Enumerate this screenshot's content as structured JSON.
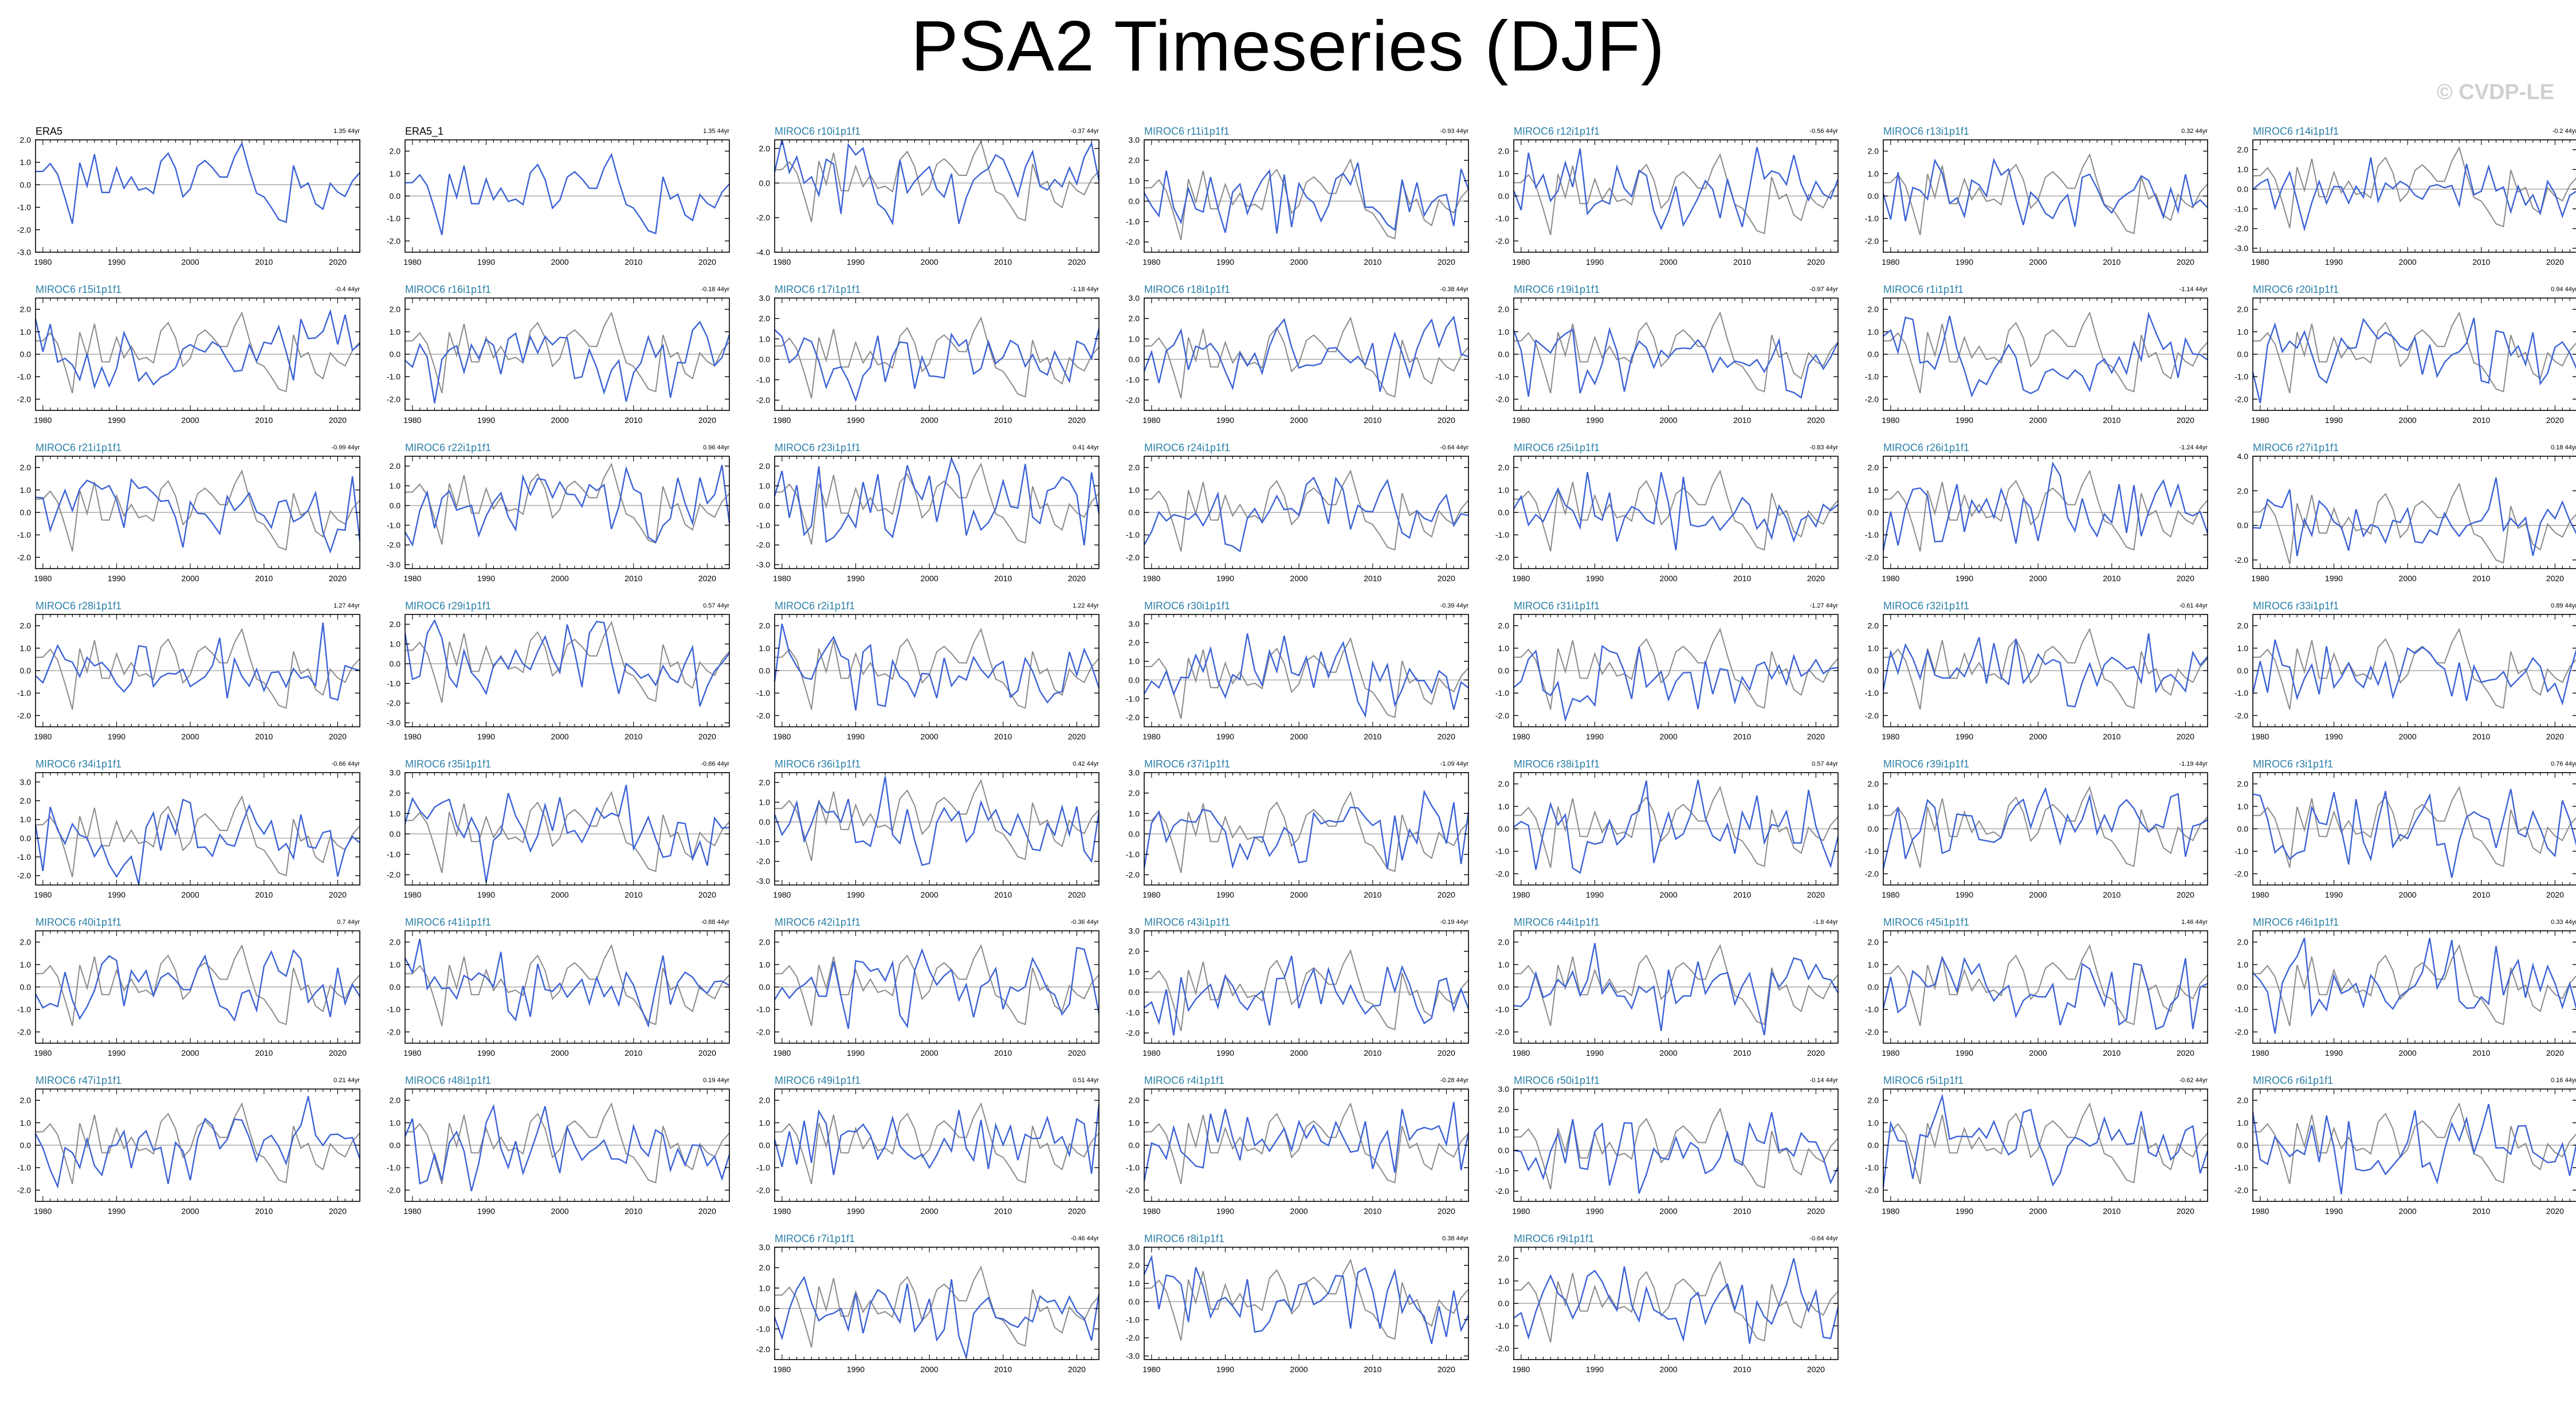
{
  "page": {
    "title": "PSA2 Timeseries (DJF)",
    "watermark": "© CVDP-LE"
  },
  "axis": {
    "x_ticks": [
      1980,
      1990,
      2000,
      2010,
      2020
    ],
    "xlim": [
      1979,
      2023
    ]
  },
  "colors": {
    "model_line": "#3b62d6",
    "obs_line": "#8a8a8a",
    "zero_line": "#999999",
    "model_title": "#2a7fa8"
  },
  "chart_data": [
    {
      "type": "line",
      "title": "ERA5",
      "trend": "1.35 44yr",
      "obs": true,
      "ylim": [
        -3,
        2
      ],
      "ticks": [
        -3,
        -2,
        -1,
        0,
        1,
        2
      ],
      "seed": 1
    },
    {
      "type": "line",
      "title": "ERA5_1",
      "trend": "1.35 44yr",
      "obs": true,
      "ylim": [
        -2.5,
        2.5
      ],
      "ticks": [
        -2,
        -1,
        0,
        1,
        2
      ],
      "seed": 1
    },
    {
      "type": "line",
      "title": "MIROC6 r10i1p1f1",
      "trend": "-0.37 44yr",
      "ylim": [
        -4,
        2.5
      ],
      "ticks": [
        -4,
        -2,
        0,
        2
      ],
      "seed": 10
    },
    {
      "type": "line",
      "title": "MIROC6 r11i1p1f1",
      "trend": "-0.93 44yr",
      "ylim": [
        -2.5,
        3
      ],
      "ticks": [
        -2,
        -1,
        0,
        1,
        2,
        3
      ],
      "seed": 11
    },
    {
      "type": "line",
      "title": "MIROC6 r12i1p1f1",
      "trend": "-0.56 44yr",
      "ylim": [
        -2.5,
        2.5
      ],
      "ticks": [
        -2,
        -1,
        0,
        1,
        2
      ],
      "seed": 12
    },
    {
      "type": "line",
      "title": "MIROC6 r13i1p1f1",
      "trend": "0.32 44yr",
      "ylim": [
        -2.5,
        2.5
      ],
      "ticks": [
        -2,
        -1,
        0,
        1,
        2
      ],
      "seed": 13
    },
    {
      "type": "line",
      "title": "MIROC6 r14i1p1f1",
      "trend": "-0.2 44yr",
      "ylim": [
        -3.2,
        2.5
      ],
      "ticks": [
        -3,
        -2,
        -1,
        0,
        1,
        2
      ],
      "seed": 14
    },
    {
      "type": "line",
      "title": "MIROC6 r15i1p1f1",
      "trend": "-0.4 44yr",
      "ylim": [
        -2.5,
        2.5
      ],
      "ticks": [
        -2,
        -1,
        0,
        1,
        2
      ],
      "seed": 15
    },
    {
      "type": "line",
      "title": "MIROC6 r16i1p1f1",
      "trend": "-0.18 44yr",
      "ylim": [
        -2.5,
        2.5
      ],
      "ticks": [
        -2,
        -1,
        0,
        1,
        2
      ],
      "seed": 16
    },
    {
      "type": "line",
      "title": "MIROC6 r17i1p1f1",
      "trend": "-1.18 44yr",
      "ylim": [
        -2.5,
        3
      ],
      "ticks": [
        -2,
        -1,
        0,
        1,
        2,
        3
      ],
      "seed": 17
    },
    {
      "type": "line",
      "title": "MIROC6 r18i1p1f1",
      "trend": "-0.38 44yr",
      "ylim": [
        -2.5,
        3
      ],
      "ticks": [
        -2,
        -1,
        0,
        1,
        2,
        3
      ],
      "seed": 18
    },
    {
      "type": "line",
      "title": "MIROC6 r19i1p1f1",
      "trend": "-0.97 44yr",
      "ylim": [
        -2.5,
        2.5
      ],
      "ticks": [
        -2,
        -1,
        0,
        1,
        2
      ],
      "seed": 19
    },
    {
      "type": "line",
      "title": "MIROC6 r1i1p1f1",
      "trend": "-1.14 44yr",
      "ylim": [
        -2.5,
        2.5
      ],
      "ticks": [
        -2,
        -1,
        0,
        1,
        2
      ],
      "seed": 21
    },
    {
      "type": "line",
      "title": "MIROC6 r20i1p1f1",
      "trend": "0.94 44yr",
      "ylim": [
        -2.5,
        2.5
      ],
      "ticks": [
        -2,
        -1,
        0,
        1,
        2
      ],
      "seed": 20
    },
    {
      "type": "line",
      "title": "MIROC6 r21i1p1f1",
      "trend": "-0.99 44yr",
      "ylim": [
        -2.5,
        2.5
      ],
      "ticks": [
        -2,
        -1,
        0,
        1,
        2
      ],
      "seed": 22
    },
    {
      "type": "line",
      "title": "MIROC6 r22i1p1f1",
      "trend": "0.96 44yr",
      "ylim": [
        -3.2,
        2.5
      ],
      "ticks": [
        -3,
        -2,
        -1,
        0,
        1,
        2
      ],
      "seed": 23
    },
    {
      "type": "line",
      "title": "MIROC6 r23i1p1f1",
      "trend": "0.41 44yr",
      "ylim": [
        -3.2,
        2.5
      ],
      "ticks": [
        -3,
        -2,
        -1,
        0,
        1,
        2
      ],
      "seed": 24
    },
    {
      "type": "line",
      "title": "MIROC6 r24i1p1f1",
      "trend": "-0.64 44yr",
      "ylim": [
        -2.5,
        2.5
      ],
      "ticks": [
        -2,
        -1,
        0,
        1,
        2
      ],
      "seed": 25
    },
    {
      "type": "line",
      "title": "MIROC6 r25i1p1f1",
      "trend": "-0.83 44yr",
      "ylim": [
        -2.5,
        2.5
      ],
      "ticks": [
        -2,
        -1,
        0,
        1,
        2
      ],
      "seed": 26
    },
    {
      "type": "line",
      "title": "MIROC6 r26i1p1f1",
      "trend": "-1.24 44yr",
      "ylim": [
        -2.5,
        2.5
      ],
      "ticks": [
        -2,
        -1,
        0,
        1,
        2
      ],
      "seed": 27
    },
    {
      "type": "line",
      "title": "MIROC6 r27i1p1f1",
      "trend": "0.18 44yr",
      "ylim": [
        -2.5,
        4
      ],
      "ticks": [
        -2,
        0,
        2,
        4
      ],
      "seed": 28
    },
    {
      "type": "line",
      "title": "MIROC6 r28i1p1f1",
      "trend": "1.27 44yr",
      "ylim": [
        -2.5,
        2.5
      ],
      "ticks": [
        -2,
        -1,
        0,
        1,
        2
      ],
      "seed": 29
    },
    {
      "type": "line",
      "title": "MIROC6 r29i1p1f1",
      "trend": "0.57 44yr",
      "ylim": [
        -3.2,
        2.5
      ],
      "ticks": [
        -3,
        -2,
        -1,
        0,
        1,
        2
      ],
      "seed": 30
    },
    {
      "type": "line",
      "title": "MIROC6 r2i1p1f1",
      "trend": "1.22 44yr",
      "ylim": [
        -2.5,
        2.5
      ],
      "ticks": [
        -2,
        -1,
        0,
        1,
        2
      ],
      "seed": 31
    },
    {
      "type": "line",
      "title": "MIROC6 r30i1p1f1",
      "trend": "-0.39 44yr",
      "ylim": [
        -2.5,
        3.5
      ],
      "ticks": [
        -2,
        -1,
        0,
        1,
        2,
        3
      ],
      "seed": 32
    },
    {
      "type": "line",
      "title": "MIROC6 r31i1p1f1",
      "trend": "-1.27 44yr",
      "ylim": [
        -2.5,
        2.5
      ],
      "ticks": [
        -2,
        -1,
        0,
        1,
        2
      ],
      "seed": 33
    },
    {
      "type": "line",
      "title": "MIROC6 r32i1p1f1",
      "trend": "-0.61 44yr",
      "ylim": [
        -2.5,
        2.5
      ],
      "ticks": [
        -2,
        -1,
        0,
        1,
        2
      ],
      "seed": 34
    },
    {
      "type": "line",
      "title": "MIROC6 r33i1p1f1",
      "trend": "0.89 44yr",
      "ylim": [
        -2.5,
        2.5
      ],
      "ticks": [
        -2,
        -1,
        0,
        1,
        2
      ],
      "seed": 35
    },
    {
      "type": "line",
      "title": "MIROC6 r34i1p1f1",
      "trend": "-0.66 44yr",
      "ylim": [
        -2.5,
        3.5
      ],
      "ticks": [
        -2,
        -1,
        0,
        1,
        2,
        3
      ],
      "seed": 36
    },
    {
      "type": "line",
      "title": "MIROC6 r35i1p1f1",
      "trend": "-0.86 44yr",
      "ylim": [
        -2.5,
        3
      ],
      "ticks": [
        -2,
        -1,
        0,
        1,
        2,
        3
      ],
      "seed": 37
    },
    {
      "type": "line",
      "title": "MIROC6 r36i1p1f1",
      "trend": "0.42 44yr",
      "ylim": [
        -3.2,
        2.5
      ],
      "ticks": [
        -3,
        -2,
        -1,
        0,
        1,
        2
      ],
      "seed": 38
    },
    {
      "type": "line",
      "title": "MIROC6 r37i1p1f1",
      "trend": "-1.09 44yr",
      "ylim": [
        -2.5,
        3
      ],
      "ticks": [
        -2,
        -1,
        0,
        1,
        2,
        3
      ],
      "seed": 39
    },
    {
      "type": "line",
      "title": "MIROC6 r38i1p1f1",
      "trend": "0.57 44yr",
      "ylim": [
        -2.5,
        2.5
      ],
      "ticks": [
        -2,
        -1,
        0,
        1,
        2
      ],
      "seed": 40
    },
    {
      "type": "line",
      "title": "MIROC6 r39i1p1f1",
      "trend": "-1.19 44yr",
      "ylim": [
        -2.5,
        2.5
      ],
      "ticks": [
        -2,
        -1,
        0,
        1,
        2
      ],
      "seed": 41
    },
    {
      "type": "line",
      "title": "MIROC6 r3i1p1f1",
      "trend": "0.76 44yr",
      "ylim": [
        -2.5,
        2.5
      ],
      "ticks": [
        -2,
        -1,
        0,
        1,
        2
      ],
      "seed": 42
    },
    {
      "type": "line",
      "title": "MIROC6 r40i1p1f1",
      "trend": "0.7 44yr",
      "ylim": [
        -2.5,
        2.5
      ],
      "ticks": [
        -2,
        -1,
        0,
        1,
        2
      ],
      "seed": 43
    },
    {
      "type": "line",
      "title": "MIROC6 r41i1p1f1",
      "trend": "-0.88 44yr",
      "ylim": [
        -2.5,
        2.5
      ],
      "ticks": [
        -2,
        -1,
        0,
        1,
        2
      ],
      "seed": 44
    },
    {
      "type": "line",
      "title": "MIROC6 r42i1p1f1",
      "trend": "-0.36 44yr",
      "ylim": [
        -2.5,
        2.5
      ],
      "ticks": [
        -2,
        -1,
        0,
        1,
        2
      ],
      "seed": 45
    },
    {
      "type": "line",
      "title": "MIROC6 r43i1p1f1",
      "trend": "-0.19 44yr",
      "ylim": [
        -2.5,
        3
      ],
      "ticks": [
        -2,
        -1,
        0,
        1,
        2,
        3
      ],
      "seed": 46
    },
    {
      "type": "line",
      "title": "MIROC6 r44i1p1f1",
      "trend": "-1.8 44yr",
      "ylim": [
        -2.5,
        2.5
      ],
      "ticks": [
        -2,
        -1,
        0,
        1,
        2
      ],
      "seed": 47
    },
    {
      "type": "line",
      "title": "MIROC6 r45i1p1f1",
      "trend": "1.46 44yr",
      "ylim": [
        -2.5,
        2.5
      ],
      "ticks": [
        -2,
        -1,
        0,
        1,
        2
      ],
      "seed": 48
    },
    {
      "type": "line",
      "title": "MIROC6 r46i1p1f1",
      "trend": "0.33 44yr",
      "ylim": [
        -2.5,
        2.5
      ],
      "ticks": [
        -2,
        -1,
        0,
        1,
        2
      ],
      "seed": 49
    },
    {
      "type": "line",
      "title": "MIROC6 r47i1p1f1",
      "trend": "0.21 44yr",
      "ylim": [
        -2.5,
        2.5
      ],
      "ticks": [
        -2,
        -1,
        0,
        1,
        2
      ],
      "seed": 50
    },
    {
      "type": "line",
      "title": "MIROC6 r48i1p1f1",
      "trend": "0.19 44yr",
      "ylim": [
        -2.5,
        2.5
      ],
      "ticks": [
        -2,
        -1,
        0,
        1,
        2
      ],
      "seed": 51
    },
    {
      "type": "line",
      "title": "MIROC6 r49i1p1f1",
      "trend": "0.51 44yr",
      "ylim": [
        -2.5,
        2.5
      ],
      "ticks": [
        -2,
        -1,
        0,
        1,
        2
      ],
      "seed": 52
    },
    {
      "type": "line",
      "title": "MIROC6 r4i1p1f1",
      "trend": "-0.28 44yr",
      "ylim": [
        -2.5,
        2.5
      ],
      "ticks": [
        -2,
        -1,
        0,
        1,
        2
      ],
      "seed": 53
    },
    {
      "type": "line",
      "title": "MIROC6 r50i1p1f1",
      "trend": "-0.14 44yr",
      "ylim": [
        -2.5,
        3
      ],
      "ticks": [
        -2,
        -1,
        0,
        1,
        2,
        3
      ],
      "seed": 54
    },
    {
      "type": "line",
      "title": "MIROC6 r5i1p1f1",
      "trend": "-0.62 44yr",
      "ylim": [
        -2.5,
        2.5
      ],
      "ticks": [
        -2,
        -1,
        0,
        1,
        2
      ],
      "seed": 55
    },
    {
      "type": "line",
      "title": "MIROC6 r6i1p1f1",
      "trend": "0.16 44yr",
      "ylim": [
        -2.5,
        2.5
      ],
      "ticks": [
        -2,
        -1,
        0,
        1,
        2
      ],
      "seed": 56
    },
    {
      "type": "line",
      "title": "MIROC6 r7i1p1f1",
      "trend": "-0.46 44yr",
      "ylim": [
        -2.5,
        3
      ],
      "ticks": [
        -2,
        -1,
        0,
        1,
        2,
        3
      ],
      "seed": 57
    },
    {
      "type": "line",
      "title": "MIROC6 r8i1p1f1",
      "trend": "0.38 44yr",
      "ylim": [
        -3.2,
        3
      ],
      "ticks": [
        -3,
        -2,
        -1,
        0,
        1,
        2,
        3
      ],
      "seed": 58
    },
    {
      "type": "line",
      "title": "MIROC6 r9i1p1f1",
      "trend": "-0.64 44yr",
      "ylim": [
        -2.5,
        2.5
      ],
      "ticks": [
        -2,
        -1,
        0,
        1,
        2
      ],
      "seed": 59
    }
  ]
}
